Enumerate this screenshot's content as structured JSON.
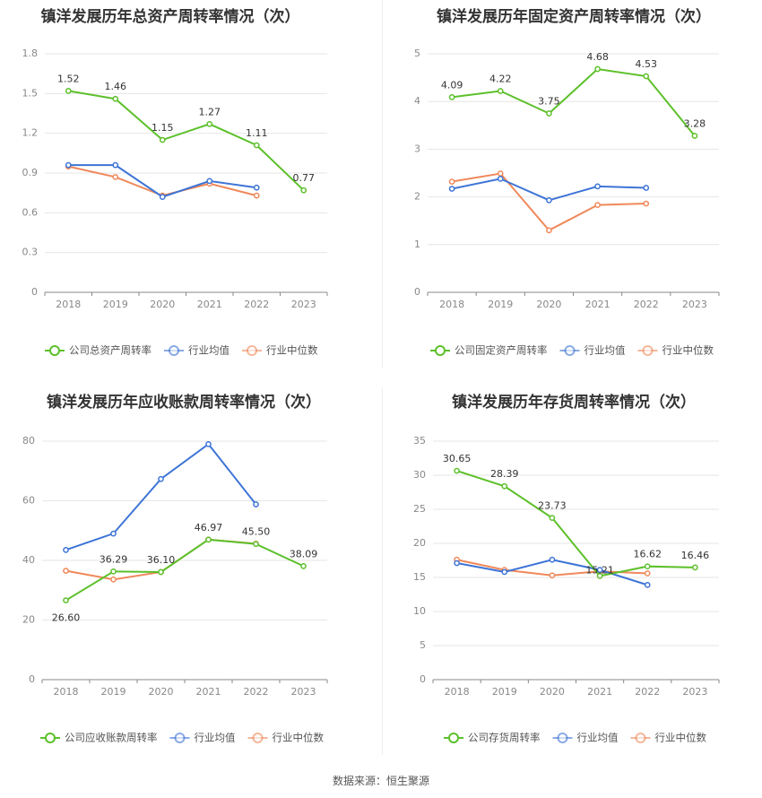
{
  "legend_common": [
    "行业均值",
    "行业中位数"
  ],
  "colors": {
    "company": "#5cc02a",
    "avg": "#3d74d6",
    "median": "#f0885a",
    "grid": "#e6e6e6",
    "axis": "#888888"
  },
  "source": "数据来源：恒生聚源",
  "chart_data": [
    {
      "type": "line",
      "title": "镇洋发展历年总资产周转率情况（次）",
      "categories": [
        "2018",
        "2019",
        "2020",
        "2021",
        "2022",
        "2023"
      ],
      "yticks": [
        "0",
        "0.3",
        "0.6",
        "0.9",
        "1.2",
        "1.5",
        "1.8"
      ],
      "ylim": [
        0,
        1.8
      ],
      "series": [
        {
          "name": "公司总资产周转率",
          "values": [
            1.52,
            1.46,
            1.15,
            1.27,
            1.11,
            0.77
          ],
          "labels": [
            "1.52",
            "1.46",
            "1.15",
            "1.27",
            "1.11",
            "0.77"
          ]
        },
        {
          "name": "行业均值",
          "values": [
            0.96,
            0.96,
            0.72,
            0.84,
            0.79,
            null
          ]
        },
        {
          "name": "行业中位数",
          "values": [
            0.95,
            0.87,
            0.73,
            0.82,
            0.73,
            null
          ]
        }
      ]
    },
    {
      "type": "line",
      "title": "镇洋发展历年固定资产周转率情况（次）",
      "categories": [
        "2018",
        "2019",
        "2020",
        "2021",
        "2022",
        "2023"
      ],
      "yticks": [
        "0",
        "1",
        "2",
        "3",
        "4",
        "5"
      ],
      "ylim": [
        0,
        5
      ],
      "series": [
        {
          "name": "公司固定资产周转率",
          "values": [
            4.09,
            4.22,
            3.75,
            4.68,
            4.53,
            3.28
          ],
          "labels": [
            "4.09",
            "4.22",
            "3.75",
            "4.68",
            "4.53",
            "3.28"
          ]
        },
        {
          "name": "行业均值",
          "values": [
            2.17,
            2.38,
            1.93,
            2.22,
            2.19,
            null
          ]
        },
        {
          "name": "行业中位数",
          "values": [
            2.32,
            2.49,
            1.3,
            1.83,
            1.86,
            null
          ]
        }
      ]
    },
    {
      "type": "line",
      "title": "镇洋发展历年应收账款周转率情况（次）",
      "categories": [
        "2018",
        "2019",
        "2020",
        "2021",
        "2022",
        "2023"
      ],
      "yticks": [
        "0",
        "20",
        "40",
        "60",
        "80"
      ],
      "ylim": [
        0,
        80
      ],
      "series": [
        {
          "name": "公司应收账款周转率",
          "values": [
            26.6,
            36.29,
            36.1,
            46.97,
            45.5,
            38.09
          ],
          "labels": [
            "26.60",
            "36.29",
            "36.10",
            "46.97",
            "45.50",
            "38.09"
          ]
        },
        {
          "name": "行业均值",
          "values": [
            43.5,
            49.0,
            67.3,
            79.0,
            58.8,
            null
          ]
        },
        {
          "name": "行业中位数",
          "values": [
            36.5,
            33.6,
            36.1,
            47.0,
            45.6,
            null
          ]
        }
      ]
    },
    {
      "type": "line",
      "title": "镇洋发展历年存货周转率情况（次）",
      "categories": [
        "2018",
        "2019",
        "2020",
        "2021",
        "2022",
        "2023"
      ],
      "yticks": [
        "0",
        "5",
        "10",
        "15",
        "20",
        "25",
        "30",
        "35"
      ],
      "ylim": [
        0,
        35
      ],
      "series": [
        {
          "name": "公司存货周转率",
          "values": [
            30.65,
            28.39,
            23.73,
            15.21,
            16.62,
            16.46
          ],
          "labels": [
            "30.65",
            "28.39",
            "23.73",
            "15.21",
            "16.62",
            "16.46"
          ]
        },
        {
          "name": "行业均值",
          "values": [
            17.1,
            15.8,
            17.6,
            16.1,
            13.9,
            null
          ]
        },
        {
          "name": "行业中位数",
          "values": [
            17.6,
            16.1,
            15.3,
            15.9,
            15.6,
            null
          ]
        }
      ]
    }
  ]
}
